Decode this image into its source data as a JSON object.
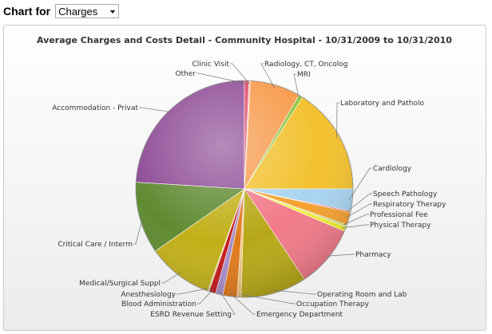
{
  "selector": {
    "label": "Chart for",
    "value": "Charges"
  },
  "chart_data": {
    "type": "pie",
    "title": "Average Charges and Costs Detail - Community Hospital - 10/31/2009 to 10/31/2010",
    "slices": [
      {
        "label": "Radiology, CT, Oncolog",
        "value": 7.5,
        "color": "#f79a4b"
      },
      {
        "label": "MRI",
        "value": 0.6,
        "color": "#8dc63f"
      },
      {
        "label": "Laboratory and Patholo",
        "value": 16.0,
        "color": "#f2c12e"
      },
      {
        "label": "Cardiology",
        "value": 3.3,
        "color": "#a9d4f0"
      },
      {
        "label": "Speech Pathology",
        "value": 0.2,
        "color": "#e8554e"
      },
      {
        "label": "Respiratory Therapy",
        "value": 1.9,
        "color": "#f5a030"
      },
      {
        "label": "Professional Fee",
        "value": 0.3,
        "color": "#c6e072"
      },
      {
        "label": "Physical Therapy",
        "value": 0.7,
        "color": "#f4ef2e"
      },
      {
        "label": "Pharmacy",
        "value": 9.3,
        "color": "#f27b8a"
      },
      {
        "label": "Operating Room and Lab",
        "value": 9.8,
        "color": "#b8a818"
      },
      {
        "label": "Occupation Therapy",
        "value": 0.6,
        "color": "#f3c27e"
      },
      {
        "label": "Emergency Department",
        "value": 2.1,
        "color": "#e07a1c"
      },
      {
        "label": "ESRD Revenue Setting",
        "value": 1.1,
        "color": "#a98fc9"
      },
      {
        "label": "Blood Administration",
        "value": 1.0,
        "color": "#c41a1a"
      },
      {
        "label": "Anesthesiology",
        "value": 0.2,
        "color": "#d9d27a"
      },
      {
        "label": "Medical/Surgical Suppl",
        "value": 9.8,
        "color": "#c2b019"
      },
      {
        "label": "Critical Care / Interm",
        "value": 10.7,
        "color": "#5f8a32"
      },
      {
        "label": "Accommodation - Privat",
        "value": 24.0,
        "color": "#8e4c96"
      },
      {
        "label": "Other",
        "value": 0.7,
        "color": "#e04a6a"
      },
      {
        "label": "Clinic Visit",
        "value": 0.2,
        "color": "#f0b08a"
      }
    ]
  }
}
